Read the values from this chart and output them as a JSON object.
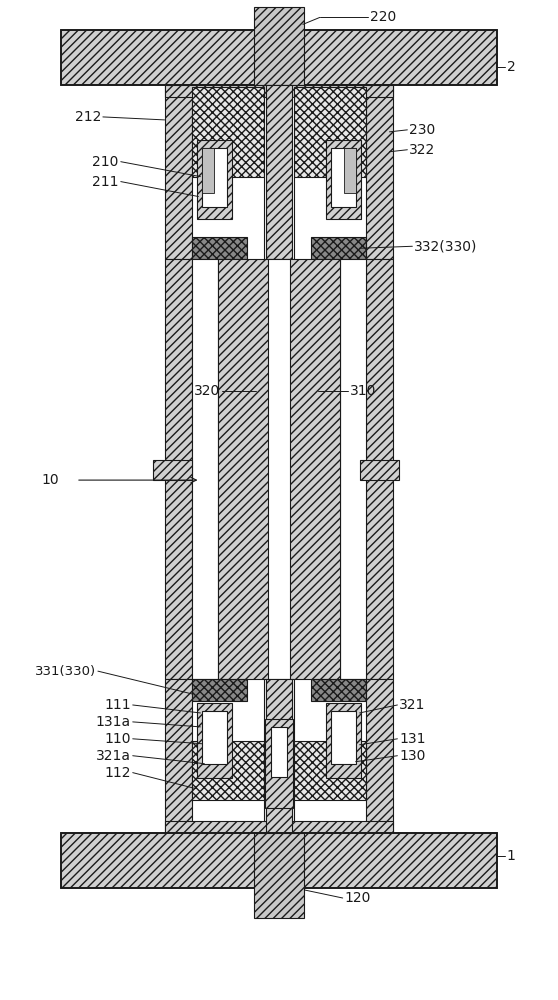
{
  "fig_w": 5.58,
  "fig_h": 10.0,
  "dpi": 100,
  "lc": "#1a1a1a",
  "board_fc": "#d8d8d8",
  "hatch_diag": "////",
  "hatch_cross": "xxxx",
  "seal_fc": "#a0a0a0",
  "insul_fc": "#e8e8e8",
  "shell_fc": "#d0d0d0",
  "white": "white"
}
